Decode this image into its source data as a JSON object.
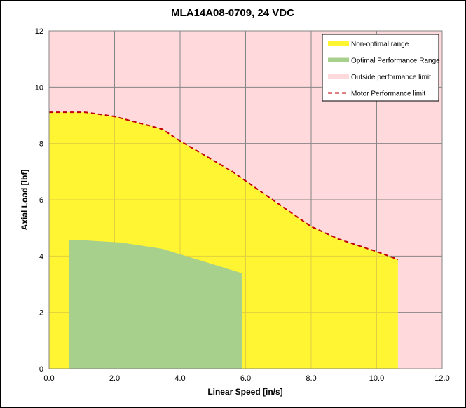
{
  "chart_data": {
    "type": "area",
    "title": "MLA14A08-0709, 24 VDC",
    "xlabel": "Linear Speed [in/s]",
    "ylabel": "Axial Load [lbf]",
    "xlim": [
      0,
      12
    ],
    "ylim": [
      0,
      12
    ],
    "xticks": [
      "0.0",
      "2.0",
      "4.0",
      "6.0",
      "8.0",
      "10.0",
      "12.0"
    ],
    "yticks": [
      "0",
      "2",
      "4",
      "6",
      "8",
      "10",
      "12"
    ],
    "grid": true,
    "legend_placement": "top-right",
    "legend": [
      {
        "label": "Non-optimal range",
        "color": "#FFF533",
        "kind": "fill"
      },
      {
        "label": "Optimal Performance Range",
        "color": "#A8D08D",
        "kind": "fill"
      },
      {
        "label": "Outside performance limit",
        "color": "#FFD9DC",
        "kind": "fill"
      },
      {
        "label": "Motor Performance limit",
        "color": "#C00000",
        "kind": "dashed"
      }
    ],
    "series": [
      {
        "name": "Motor Performance limit",
        "x": [
          0,
          1.1,
          2.0,
          3.45,
          4.0,
          5.6,
          6.8,
          8.0,
          8.85,
          10.0,
          10.65
        ],
        "y": [
          9.11,
          9.11,
          8.96,
          8.51,
          8.09,
          7.0,
          6.02,
          5.05,
          4.6,
          4.16,
          3.88
        ]
      },
      {
        "name": "Optimal Performance Range",
        "x": [
          0.6,
          1.1,
          2.2,
          3.45,
          4.1,
          5.9
        ],
        "y": [
          4.56,
          4.56,
          4.48,
          4.26,
          4.03,
          3.39
        ]
      }
    ]
  }
}
